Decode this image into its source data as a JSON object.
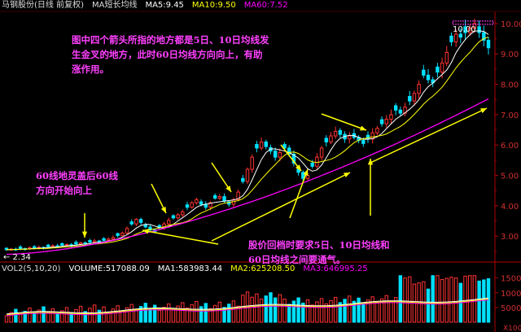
{
  "header": {
    "stock_name": "马钢股份(日线 前复权)",
    "indicator": "MA短长均线",
    "ma5": "MA5:9.45",
    "ma10": "MA10:9.50",
    "ma60": "MA60:7.52"
  },
  "volume_header": {
    "indicator": "VOL2(5,10,20)",
    "volume": "VOLUME:517088.09",
    "ma1": "MA1:583983.44",
    "ma2": "MA2:625208.50",
    "ma3": "MA3:646995.25"
  },
  "annotations": {
    "top": "图中四个箭头所指的地方都是5日、10日均线发\n生金叉的地方，此时60日均线方向向上，有助\n涨作用。",
    "left": "60线地灵盖后60线\n方向开始向上",
    "bottom": "股价回档时要求5日、10日均线和\n60日均线之间要通气。"
  },
  "price_labels": {
    "high": "10.00",
    "low": "← 2.34"
  },
  "price_axis": [
    "10.00",
    "9.00",
    "8.00",
    "7.00",
    "6.00",
    "5.00",
    "4.00",
    "3.00"
  ],
  "volume_axis": [
    "15000",
    "10000",
    "5000",
    "X100"
  ],
  "colors": {
    "up": "#ff3232",
    "down": "#00e0ff",
    "ma5": "#ffffff",
    "ma10": "#ffff00",
    "ma60": "#ff00ff",
    "annotation": "#ff40ff",
    "arrow": "#ffff00",
    "axis": "#b00000"
  },
  "chart_data": {
    "type": "candlestick",
    "series_close": [
      2.55,
      2.57,
      2.56,
      2.59,
      2.58,
      2.62,
      2.6,
      2.63,
      2.61,
      2.65,
      2.68,
      2.66,
      2.7,
      2.72,
      2.69,
      2.74,
      2.78,
      2.75,
      2.8,
      2.84,
      2.8,
      2.86,
      2.9,
      2.95,
      3.02,
      3.1,
      3.25,
      3.4,
      3.55,
      3.45,
      3.3,
      3.2,
      3.15,
      3.28,
      3.4,
      3.52,
      3.6,
      3.7,
      3.8,
      3.95,
      4.1,
      4.2,
      4.05,
      3.95,
      4.1,
      4.25,
      4.3,
      4.15,
      4.05,
      4.2,
      4.45,
      4.8,
      5.2,
      5.6,
      5.9,
      6.1,
      5.95,
      5.8,
      5.6,
      5.75,
      5.9,
      5.7,
      5.4,
      5.1,
      4.9,
      5.0,
      5.3,
      5.6,
      5.9,
      6.1,
      6.3,
      6.45,
      6.35,
      6.2,
      6.3,
      6.25,
      6.15,
      6.05,
      6.2,
      6.4,
      6.55,
      6.7,
      6.85,
      7.0,
      7.15,
      7.05,
      7.25,
      7.45,
      7.7,
      8.0,
      8.3,
      8.15,
      8.05,
      8.4,
      8.7,
      9.05,
      9.4,
      9.65,
      9.55,
      9.7,
      9.85,
      10.0,
      9.7,
      9.45,
      9.2
    ],
    "ma60_endpoints": [
      2.4,
      7.52
    ],
    "ylim": [
      2.34,
      10.0
    ],
    "volume_ylim": [
      0,
      16000
    ]
  }
}
